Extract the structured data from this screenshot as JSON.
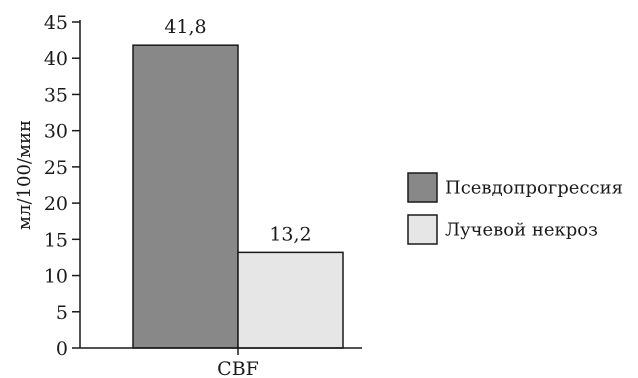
{
  "chart_data": {
    "type": "bar",
    "categories": [
      "CBF"
    ],
    "series": [
      {
        "name": "Псевдопрогрессия",
        "values": [
          41.8
        ],
        "value_label": "41,8",
        "color": "#888888"
      },
      {
        "name": "Лучевой некроз",
        "values": [
          13.2
        ],
        "value_label": "13,2",
        "color": "#e6e6e6"
      }
    ],
    "title": "",
    "xlabel": "",
    "ylabel": "мл/100/мин",
    "ylim": [
      0,
      45
    ],
    "yticks": [
      0,
      5,
      10,
      15,
      20,
      25,
      30,
      35,
      40,
      45
    ],
    "grid": false,
    "legend_position": "right"
  }
}
